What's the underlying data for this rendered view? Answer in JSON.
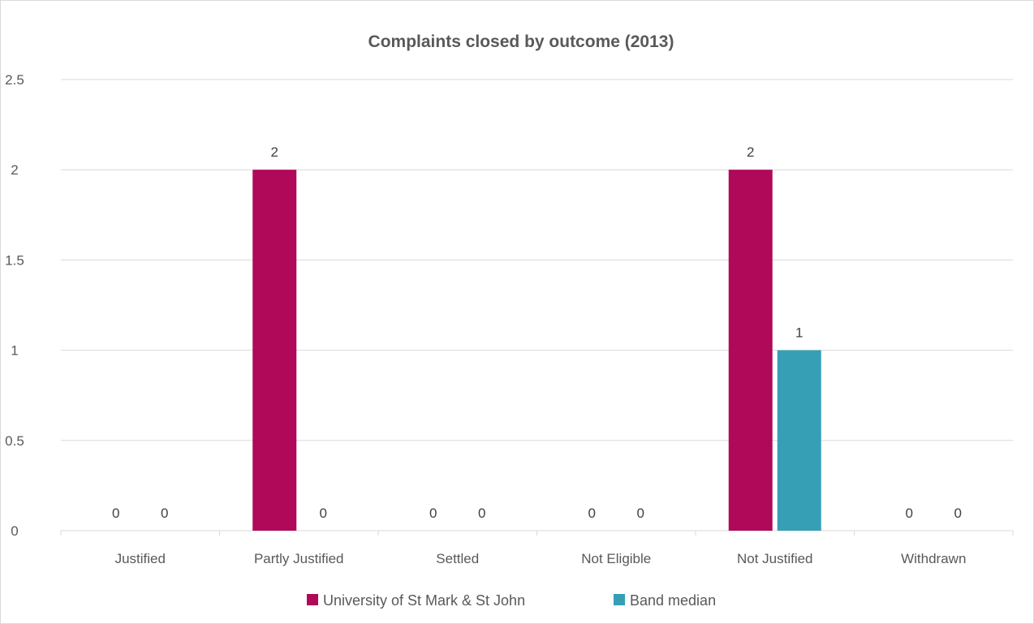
{
  "chart_data": {
    "type": "bar",
    "title": "Complaints closed by outcome (2013)",
    "xlabel": "",
    "ylabel": "",
    "categories": [
      "Justified",
      "Partly Justified",
      "Settled",
      "Not Eligible",
      "Not Justified",
      "Withdrawn"
    ],
    "series": [
      {
        "name": "University of St Mark & St John",
        "color": "#b0095a",
        "values": [
          0,
          2,
          0,
          0,
          2,
          0
        ]
      },
      {
        "name": "Band median",
        "color": "#369fb5",
        "values": [
          0,
          0,
          0,
          0,
          1,
          0
        ]
      }
    ],
    "ylim": [
      0,
      2.5
    ],
    "yticks": [
      "0",
      "0.5",
      "1",
      "1.5",
      "2",
      "2.5"
    ],
    "data_labels": true,
    "grid": true,
    "legend_position": "bottom"
  }
}
